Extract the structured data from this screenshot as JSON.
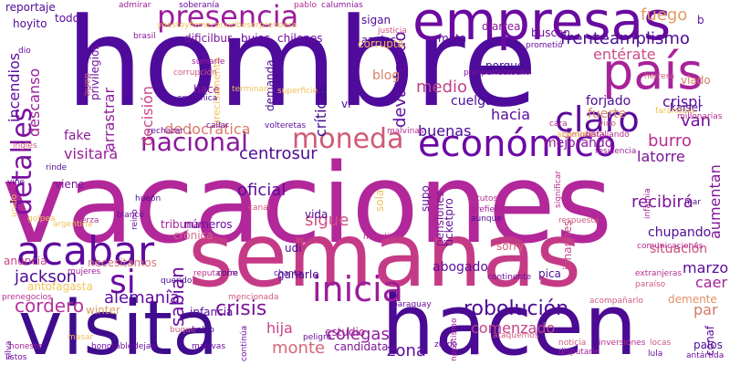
{
  "words": [
    {
      "text": "vacaciones",
      "color": "#b2279a"
    },
    {
      "text": "hombre",
      "color": "#4f0b9b"
    },
    {
      "text": "semanas",
      "color": "#c53a86"
    },
    {
      "text": "hacen",
      "color": "#4a0a93"
    },
    {
      "text": "visita",
      "color": "#3f0c8e"
    },
    {
      "text": "empresas",
      "color": "#6a0aa0"
    },
    {
      "text": "país",
      "color": "#a8239a"
    },
    {
      "text": "presencia",
      "color": "#9c1c9c"
    },
    {
      "text": "económico",
      "color": "#6c0aa6"
    },
    {
      "text": "acabar",
      "color": "#5e0a9e"
    },
    {
      "text": "inicia",
      "color": "#9b1d9b"
    },
    {
      "text": "claro",
      "color": "#5a0a9b"
    },
    {
      "text": "moneda",
      "color": "#d05a77"
    },
    {
      "text": "nacional",
      "color": "#8a1a9a"
    },
    {
      "text": "detalles",
      "color": "#7b12a0"
    },
    {
      "text": "si",
      "color": "#6c0ba3"
    },
    {
      "text": "robolución",
      "color": "#4c0b93"
    },
    {
      "text": "crisis",
      "color": "#7a1699"
    },
    {
      "text": "hija",
      "color": "#c94288"
    },
    {
      "text": "alemania",
      "color": "#5f0b9d"
    },
    {
      "text": "cordero",
      "color": "#b2339a"
    },
    {
      "text": "jackson",
      "color": "#4c0a95"
    },
    {
      "text": "monte",
      "color": "#d4677b"
    },
    {
      "text": "colegas",
      "color": "#8f1d9b"
    },
    {
      "text": "comenzado",
      "color": "#c04288"
    },
    {
      "text": "zona",
      "color": "#5a0a9b"
    },
    {
      "text": "sabían",
      "color": "#6b0ba0"
    },
    {
      "text": "frenteamplismo",
      "color": "#4a0b94"
    },
    {
      "text": "entérate",
      "color": "#ca4d85"
    },
    {
      "text": "fuego",
      "color": "#e29a64"
    },
    {
      "text": "crispi",
      "color": "#5b0b9c"
    },
    {
      "text": "van",
      "color": "#6e0c9f"
    },
    {
      "text": "burro",
      "color": "#b52e8f"
    },
    {
      "text": "latorre",
      "color": "#7b1399"
    },
    {
      "text": "hacia",
      "color": "#5b0a9d"
    },
    {
      "text": "medio",
      "color": "#c1418a"
    },
    {
      "text": "devastando",
      "color": "#5c0a9c"
    },
    {
      "text": "buenas",
      "color": "#4a0a95"
    },
    {
      "text": "centrosur",
      "color": "#4c0b94"
    },
    {
      "text": "oficial",
      "color": "#5c0b9c"
    },
    {
      "text": "visitará",
      "color": "#9a1d9d"
    },
    {
      "text": "sigue",
      "color": "#cf4f7f"
    },
    {
      "text": "recibirá",
      "color": "#7d1597"
    },
    {
      "text": "aumentan",
      "color": "#7f1495"
    },
    {
      "text": "situación",
      "color": "#cc4d7d"
    },
    {
      "text": "marzo",
      "color": "#5a0b9b"
    },
    {
      "text": "caer",
      "color": "#a51f99"
    },
    {
      "text": "par",
      "color": "#d37a6d"
    },
    {
      "text": "incendios",
      "color": "#5c0b9e"
    },
    {
      "text": "descanso",
      "color": "#9a1f9a"
    },
    {
      "text": "arrastrar",
      "color": "#8e1f9a"
    },
    {
      "text": "decisión",
      "color": "#c8488a"
    },
    {
      "text": "críticas",
      "color": "#3d0b8c"
    },
    {
      "text": "dedocrática",
      "color": "#d97b6b"
    },
    {
      "text": "fake",
      "color": "#8e1d9c"
    },
    {
      "text": "blog",
      "color": "#d9836a"
    },
    {
      "text": "anuncia",
      "color": "#c6478a"
    },
    {
      "text": "antofagasta",
      "color": "#f0c65a"
    },
    {
      "text": "winter",
      "color": "#dba064"
    },
    {
      "text": "necesitamos",
      "color": "#d5767a"
    },
    {
      "text": "tribuna",
      "color": "#a4249b"
    },
    {
      "text": "chupando",
      "color": "#4e0b95"
    },
    {
      "text": "abogado",
      "color": "#5a0b9c"
    },
    {
      "text": "candidata",
      "color": "#7d1696"
    },
    {
      "text": "estudio",
      "color": "#a0239b"
    },
    {
      "text": "mejorando",
      "color": "#8d1a9b"
    },
    {
      "text": "forjado",
      "color": "#4d0b94"
    },
    {
      "text": "fuerte",
      "color": "#d9866b"
    },
    {
      "text": "cuelga",
      "color": "#4b0b94"
    },
    {
      "text": "porqué",
      "color": "#3e0b8c"
    },
    {
      "text": "mata",
      "color": "#5c0b9c"
    },
    {
      "text": "diarrea",
      "color": "#8a1a9a"
    },
    {
      "text": "buscan",
      "color": "#6c0ea0"
    },
    {
      "text": "azules",
      "color": "#4a0a94"
    },
    {
      "text": "sigan",
      "color": "#4f0a97"
    },
    {
      "text": "corrupta",
      "color": "#f0b55f"
    },
    {
      "text": "reportaje",
      "color": "#4b0b94"
    },
    {
      "text": "todo",
      "color": "#5c0b9c"
    },
    {
      "text": "hoyito",
      "color": "#4d0b95"
    },
    {
      "text": "privilegios",
      "color": "#6d0fa0"
    },
    {
      "text": "dificilbur",
      "color": "#7c1499"
    },
    {
      "text": "bujas",
      "color": "#6a0ba0"
    },
    {
      "text": "chilenos",
      "color": "#6b0ca0"
    },
    {
      "text": "hace",
      "color": "#8a1a9a"
    },
    {
      "text": "precisamente",
      "color": "#f0c05c"
    },
    {
      "text": "demanda",
      "color": "#4e0b95"
    },
    {
      "text": "vi",
      "color": "#4c0b95"
    },
    {
      "text": "vlado",
      "color": "#d77e6d"
    },
    {
      "text": "kaiser",
      "color": "#4d0b95"
    },
    {
      "text": "ticketpro",
      "color": "#5b0b9b"
    },
    {
      "text": "supo",
      "color": "#5c0b9c"
    },
    {
      "text": "pensiones",
      "color": "#7d1597"
    },
    {
      "text": "sorry",
      "color": "#d5627a"
    },
    {
      "text": "pica",
      "color": "#4c0b95"
    },
    {
      "text": "johannes",
      "color": "#c44b87"
    },
    {
      "text": "demente",
      "color": "#e29063"
    },
    {
      "text": "palos",
      "color": "#4d0b95"
    },
    {
      "text": "conaf",
      "color": "#5b0b9b"
    },
    {
      "text": "ganarle",
      "color": "#4d0b95"
    },
    {
      "text": "udi",
      "color": "#4a0a94"
    },
    {
      "text": "vida",
      "color": "#4b0a94"
    },
    {
      "text": "crónica",
      "color": "#d3698a"
    },
    {
      "text": "números",
      "color": "#6c0ca0"
    },
    {
      "text": "infancia",
      "color": "#5c0b9c"
    },
    {
      "text": "sola",
      "color": "#f0be5d"
    },
    {
      "text": "viene",
      "color": "#7b1597"
    },
    {
      "text": "b",
      "color": "#5c0b9c"
    },
    {
      "text": "dio",
      "color": "#6d0ca1"
    },
    {
      "text": "darle",
      "color": "#d05a7e"
    },
    {
      "text": "brasil",
      "color": "#8a1a9a"
    },
    {
      "text": "admirar",
      "color": "#9f1f9b"
    },
    {
      "text": "soberanía",
      "color": "#6c0ca0"
    },
    {
      "text": "yoestoyfirmeconuribeserprendera",
      "color": "#f0c05c"
    },
    {
      "text": "pablo",
      "color": "#b52f8f"
    },
    {
      "text": "calumnias",
      "color": "#8d1b9a"
    },
    {
      "text": "prometió",
      "color": "#6b0ca0"
    },
    {
      "text": "planperfectochv",
      "color": "#7c1499"
    },
    {
      "text": "herrera",
      "color": "#d05a7e"
    },
    {
      "text": "endémica",
      "color": "#4c0b95"
    },
    {
      "text": "corrupción",
      "color": "#d05a7e"
    },
    {
      "text": "sumarle",
      "color": "#9f1f9b"
    },
    {
      "text": "terminan",
      "color": "#f0c05c"
    },
    {
      "text": "superficie",
      "color": "#f0c05c"
    },
    {
      "text": "callar",
      "color": "#6c0ca0"
    },
    {
      "text": "rechazar",
      "color": "#6c0ca0"
    },
    {
      "text": "volteretas",
      "color": "#5c0b9c"
    },
    {
      "text": "justicia",
      "color": "#d05a7e"
    },
    {
      "text": "comunista",
      "color": "#d05a7e"
    },
    {
      "text": "argentino",
      "color": "#f0c05c"
    },
    {
      "text": "batallando",
      "color": "#b52f8f"
    },
    {
      "text": "resiliencia",
      "color": "#9f1f9b"
    },
    {
      "text": "farándula",
      "color": "#f0c05c"
    },
    {
      "text": "millonarias",
      "color": "#b52f8f"
    },
    {
      "text": "rinde",
      "color": "#4c0b95"
    },
    {
      "text": "vine",
      "color": "#5c0b9c"
    },
    {
      "text": "inglés",
      "color": "#d05a7e"
    },
    {
      "text": "hueón",
      "color": "#4c0b95"
    },
    {
      "text": "malvinas",
      "color": "#b52f8f"
    },
    {
      "text": "canal",
      "color": "#d05a7e"
    },
    {
      "text": "fuerza",
      "color": "#b52f8f"
    },
    {
      "text": "unido",
      "color": "#f0c05c"
    },
    {
      "text": "golpea",
      "color": "#f0c05c"
    },
    {
      "text": "reino",
      "color": "#6c0ca0"
    },
    {
      "text": "blanco",
      "color": "#6c0ca0"
    },
    {
      "text": "argentina",
      "color": "#f0c05c"
    },
    {
      "text": "moralina",
      "color": "#b52f8f"
    },
    {
      "text": "pitutos",
      "color": "#b52f8f"
    },
    {
      "text": "aunque",
      "color": "#4c0b95"
    },
    {
      "text": "prefiero",
      "color": "#9f1f9b"
    },
    {
      "text": "significar",
      "color": "#b52f8f"
    },
    {
      "text": "respuesta",
      "color": "#d05a7e"
    },
    {
      "text": "infamia",
      "color": "#9f1f9b"
    },
    {
      "text": "mar",
      "color": "#4c0b95"
    },
    {
      "text": "comunicaciones",
      "color": "#b52f8f"
    },
    {
      "text": "paraíso",
      "color": "#d05a7e"
    },
    {
      "text": "extranjeras",
      "color": "#b52f8f"
    },
    {
      "text": "mujeres",
      "color": "#9f1f9b"
    },
    {
      "text": "querido",
      "color": "#4c0b95"
    },
    {
      "text": "reputación",
      "color": "#b52f8f"
    },
    {
      "text": "corre",
      "color": "#4c0b95"
    },
    {
      "text": "chanta",
      "color": "#4c0b95"
    },
    {
      "text": "continente",
      "color": "#6c0ca0"
    },
    {
      "text": "acompañarlo",
      "color": "#d05a7e"
    },
    {
      "text": "prenegocios",
      "color": "#b52f8f"
    },
    {
      "text": "mencionada",
      "color": "#d05a7e"
    },
    {
      "text": "paraguay",
      "color": "#6c0ca0"
    },
    {
      "text": "masar",
      "color": "#f0c05c"
    },
    {
      "text": "buque",
      "color": "#d05a7e"
    },
    {
      "text": "hablo",
      "color": "#4c0b95"
    },
    {
      "text": "honesto",
      "color": "#9f1f9b"
    },
    {
      "text": "honorable",
      "color": "#6c0ca0"
    },
    {
      "text": "dejan",
      "color": "#6c0ca0"
    },
    {
      "text": "masivas",
      "color": "#6c0ca0"
    },
    {
      "text": "continúa",
      "color": "#6c0ca0"
    },
    {
      "text": "peligro",
      "color": "#6c0ca0"
    },
    {
      "text": "zurdo",
      "color": "#6c0ca0"
    },
    {
      "text": "nepotismo",
      "color": "#9f1f9b"
    },
    {
      "text": "ataquemos",
      "color": "#d05a7e"
    },
    {
      "text": "noticia",
      "color": "#d05a7e"
    },
    {
      "text": "disputarle",
      "color": "#9f1f9b"
    },
    {
      "text": "inversiones",
      "color": "#b52f8f"
    },
    {
      "text": "locas",
      "color": "#d05a7e"
    },
    {
      "text": "antártida",
      "color": "#6c0ca0"
    },
    {
      "text": "listos",
      "color": "#6c0ca0"
    },
    {
      "text": "silva",
      "color": "#6c0ca0"
    },
    {
      "text": "lula",
      "color": "#6c0ca0"
    },
    {
      "text": "cara",
      "color": "#b52f8f"
    },
    {
      "text": "vino",
      "color": "#d05a7e"
    }
  ]
}
